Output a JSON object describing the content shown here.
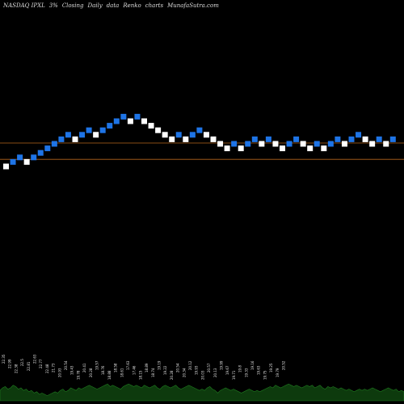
{
  "header": {
    "exchange_symbol": "NASDAQ IPXL",
    "change": "3%",
    "series": "Closing",
    "frequency": "Daily",
    "data_label": "data",
    "chart_kind": "Renko",
    "charts_label": "charts",
    "source": "MunafaSutra.com"
  },
  "colors": {
    "background": "#000000",
    "up_brick": "#ffffff",
    "down_brick": "#1e74e6",
    "support_line": "#b5651d",
    "volume_fill": "#0d3a0d",
    "volume_edge": "#1f7a1f"
  },
  "chart_data": {
    "type": "renko",
    "title": "",
    "bricks": [
      {
        "dir": "up",
        "level": 29
      },
      {
        "dir": "down",
        "level": 28
      },
      {
        "dir": "down",
        "level": 27
      },
      {
        "dir": "up",
        "level": 28
      },
      {
        "dir": "down",
        "level": 27
      },
      {
        "dir": "down",
        "level": 26
      },
      {
        "dir": "down",
        "level": 25
      },
      {
        "dir": "down",
        "level": 24
      },
      {
        "dir": "down",
        "level": 23
      },
      {
        "dir": "down",
        "level": 22
      },
      {
        "dir": "up",
        "level": 23
      },
      {
        "dir": "down",
        "level": 22
      },
      {
        "dir": "down",
        "level": 21
      },
      {
        "dir": "up",
        "level": 22
      },
      {
        "dir": "down",
        "level": 21
      },
      {
        "dir": "down",
        "level": 20
      },
      {
        "dir": "down",
        "level": 19
      },
      {
        "dir": "down",
        "level": 18
      },
      {
        "dir": "up",
        "level": 19
      },
      {
        "dir": "down",
        "level": 18
      },
      {
        "dir": "up",
        "level": 19
      },
      {
        "dir": "up",
        "level": 20
      },
      {
        "dir": "up",
        "level": 21
      },
      {
        "dir": "up",
        "level": 22
      },
      {
        "dir": "up",
        "level": 23
      },
      {
        "dir": "down",
        "level": 22
      },
      {
        "dir": "up",
        "level": 23
      },
      {
        "dir": "down",
        "level": 22
      },
      {
        "dir": "down",
        "level": 21
      },
      {
        "dir": "up",
        "level": 22
      },
      {
        "dir": "up",
        "level": 23
      },
      {
        "dir": "up",
        "level": 24
      },
      {
        "dir": "up",
        "level": 25
      },
      {
        "dir": "down",
        "level": 24
      },
      {
        "dir": "up",
        "level": 25
      },
      {
        "dir": "down",
        "level": 24
      },
      {
        "dir": "down",
        "level": 23
      },
      {
        "dir": "up",
        "level": 24
      },
      {
        "dir": "down",
        "level": 23
      },
      {
        "dir": "up",
        "level": 24
      },
      {
        "dir": "up",
        "level": 25
      },
      {
        "dir": "down",
        "level": 24
      },
      {
        "dir": "down",
        "level": 23
      },
      {
        "dir": "up",
        "level": 24
      },
      {
        "dir": "up",
        "level": 25
      },
      {
        "dir": "down",
        "level": 24
      },
      {
        "dir": "up",
        "level": 25
      },
      {
        "dir": "down",
        "level": 24
      },
      {
        "dir": "down",
        "level": 23
      },
      {
        "dir": "up",
        "level": 24
      },
      {
        "dir": "down",
        "level": 23
      },
      {
        "dir": "down",
        "level": 22
      },
      {
        "dir": "up",
        "level": 23
      },
      {
        "dir": "up",
        "level": 24
      },
      {
        "dir": "down",
        "level": 23
      },
      {
        "dir": "up",
        "level": 24
      },
      {
        "dir": "down",
        "level": 23
      }
    ],
    "reference_lines": [
      26.8,
      23.2
    ],
    "volume": {
      "values": [
        8,
        10,
        11,
        9,
        10,
        12,
        11,
        9,
        10,
        8,
        9,
        7,
        8,
        6,
        7,
        5,
        6,
        5,
        4,
        5,
        6,
        7,
        6,
        8,
        9,
        7,
        8,
        10,
        9,
        8,
        10,
        9,
        10,
        11,
        12,
        11,
        10,
        9,
        10,
        11,
        12,
        13,
        11,
        12,
        11,
        10,
        9,
        11,
        12,
        13,
        12,
        11,
        12,
        11,
        10,
        12,
        11,
        10,
        11,
        12,
        10,
        9,
        11,
        12,
        11,
        10,
        11,
        12,
        10,
        9,
        10,
        11,
        12,
        11,
        10,
        9,
        8,
        9,
        8,
        10,
        11,
        9,
        8,
        6,
        8,
        9,
        10,
        9,
        8,
        9,
        8,
        7,
        6,
        7,
        8,
        9,
        8,
        7,
        8,
        7,
        8,
        9,
        10,
        11,
        10,
        12,
        11,
        10,
        11,
        12,
        13,
        12,
        11,
        12,
        11,
        10,
        11,
        12,
        11,
        12,
        10,
        11,
        12,
        10,
        9,
        11,
        10,
        11,
        10,
        9,
        10,
        9,
        8,
        9,
        8,
        7,
        8,
        9,
        8,
        9,
        8,
        9,
        10,
        9,
        8,
        7,
        8,
        9,
        10,
        9,
        8,
        9,
        7,
        8,
        7
      ],
      "max": 26,
      "labels": [
        "22.35",
        "22.99",
        "22.38",
        "22.5",
        "22.81",
        "22.63",
        "22.77",
        "22.48",
        "21.73",
        "20.93",
        "20.54",
        "19.43",
        "19.78",
        "20.41",
        "20.28",
        "19.57",
        "18.76",
        "18.88",
        "18.58",
        "18.61",
        "17.63",
        "17.46",
        "18.15",
        "18.89",
        "18.74",
        "19.19",
        "19.22",
        "20.28",
        "20.54",
        "20.34",
        "20.12",
        "19.93",
        "20.03",
        "20.57",
        "20.13",
        "19.99",
        "19.67",
        "19.71",
        "19.8",
        "19.33",
        "19.16",
        "19.63",
        "19.75",
        "19.25",
        "19.79",
        "20.52"
      ]
    }
  }
}
